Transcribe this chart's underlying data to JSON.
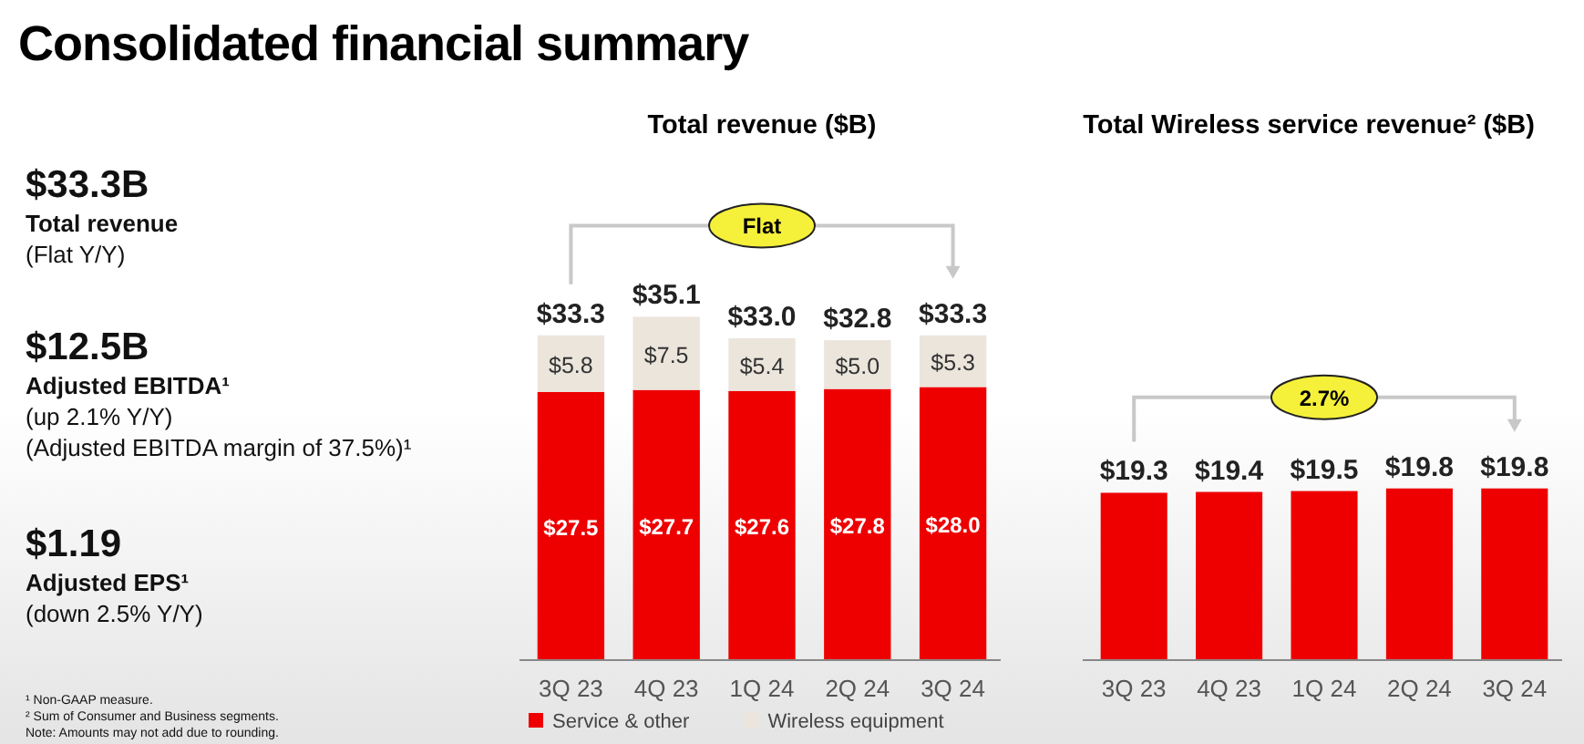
{
  "chart_data": [
    {
      "type": "other",
      "title": "Consolidated financial summary",
      "annotations": [
        "$33.3B",
        "Total revenue",
        "(Flat Y/Y)",
        "$12.5B",
        "Adjusted EBITDA¹",
        "(up 2.1% Y/Y)",
        "(Adjusted EBITDA margin of 37.5%)¹",
        "$1.19",
        "Adjusted EPS¹",
        "(down 2.5% Y/Y)",
        "¹ Non-GAAP measure.",
        "² Sum of Consumer and Business segments.",
        "Note: Amounts may not add due to rounding."
      ]
    },
    {
      "type": "bar",
      "title": "Total revenue ($B)",
      "stacked": true,
      "categories": [
        "3Q 23",
        "4Q 23",
        "1Q 24",
        "2Q 24",
        "3Q 24"
      ],
      "series": [
        {
          "name": "Service & other",
          "color": "#ee0000",
          "values": [
            27.5,
            27.7,
            27.6,
            27.8,
            28.0
          ],
          "value_labels": [
            "$27.5",
            "$27.7",
            "$27.6",
            "$27.8",
            "$28.0"
          ]
        },
        {
          "name": "Wireless equipment",
          "color": "#ebe5dc",
          "values": [
            5.8,
            7.5,
            5.4,
            5.0,
            5.3
          ],
          "value_labels": [
            "$5.8",
            "$7.5",
            "$5.4",
            "$5.0",
            "$5.3"
          ]
        }
      ],
      "totals": [
        "$33.3",
        "$35.1",
        "$33.0",
        "$32.8",
        "$33.3"
      ],
      "tick_labels": "x",
      "legend": "bottom",
      "annotations": [
        "Flat"
      ]
    },
    {
      "type": "bar",
      "title": "Total Wireless service revenue² ($B)",
      "categories": [
        "3Q 23",
        "4Q 23",
        "1Q 24",
        "2Q 24",
        "3Q 24"
      ],
      "series": [
        {
          "color": "#ee0000",
          "values": [
            19.3,
            19.4,
            19.5,
            19.8,
            19.8
          ],
          "value_labels": [
            "$19.3",
            "$19.4",
            "$19.5",
            "$19.8",
            "$19.8"
          ]
        }
      ],
      "tick_labels": "x",
      "annotations": [
        "2.7%"
      ]
    }
  ]
}
